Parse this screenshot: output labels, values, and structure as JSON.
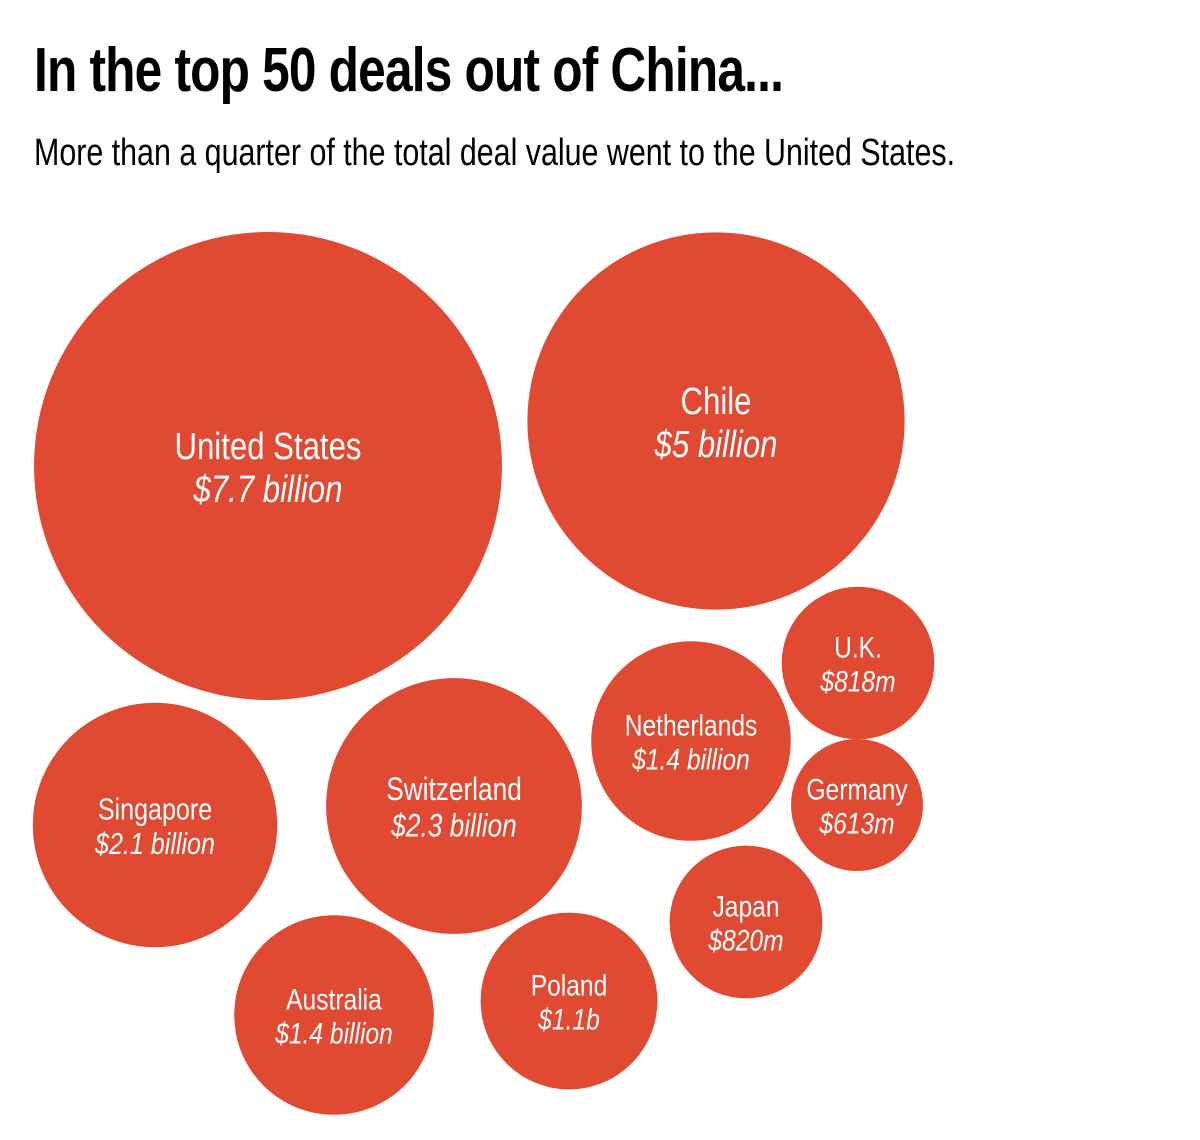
{
  "header": {
    "title": "In the top 50 deals out of China...",
    "subtitle": "More than a quarter of the total deal value went to the United States."
  },
  "chart_data": {
    "type": "bubble",
    "title": "In the top 50 deals out of China...",
    "subtitle": "More than a quarter of the total deal value went to the United States.",
    "unit": "USD",
    "color": "#E04A33",
    "series": [
      {
        "name": "Deal value by destination",
        "points": [
          {
            "country": "United States",
            "value_millions": 7700,
            "label": "$7.7 billion"
          },
          {
            "country": "Chile",
            "value_millions": 5000,
            "label": "$5 billion"
          },
          {
            "country": "Switzerland",
            "value_millions": 2300,
            "label": "$2.3 billion"
          },
          {
            "country": "Singapore",
            "value_millions": 2100,
            "label": "$2.1 billion"
          },
          {
            "country": "Netherlands",
            "value_millions": 1400,
            "label": "$1.4 billion"
          },
          {
            "country": "Australia",
            "value_millions": 1400,
            "label": "$1.4 billion"
          },
          {
            "country": "Poland",
            "value_millions": 1100,
            "label": "$1.1b"
          },
          {
            "country": "Japan",
            "value_millions": 820,
            "label": "$820m"
          },
          {
            "country": "U.K.",
            "value_millions": 818,
            "label": "$818m"
          },
          {
            "country": "Germany",
            "value_millions": 613,
            "label": "$613m"
          }
        ]
      }
    ]
  }
}
